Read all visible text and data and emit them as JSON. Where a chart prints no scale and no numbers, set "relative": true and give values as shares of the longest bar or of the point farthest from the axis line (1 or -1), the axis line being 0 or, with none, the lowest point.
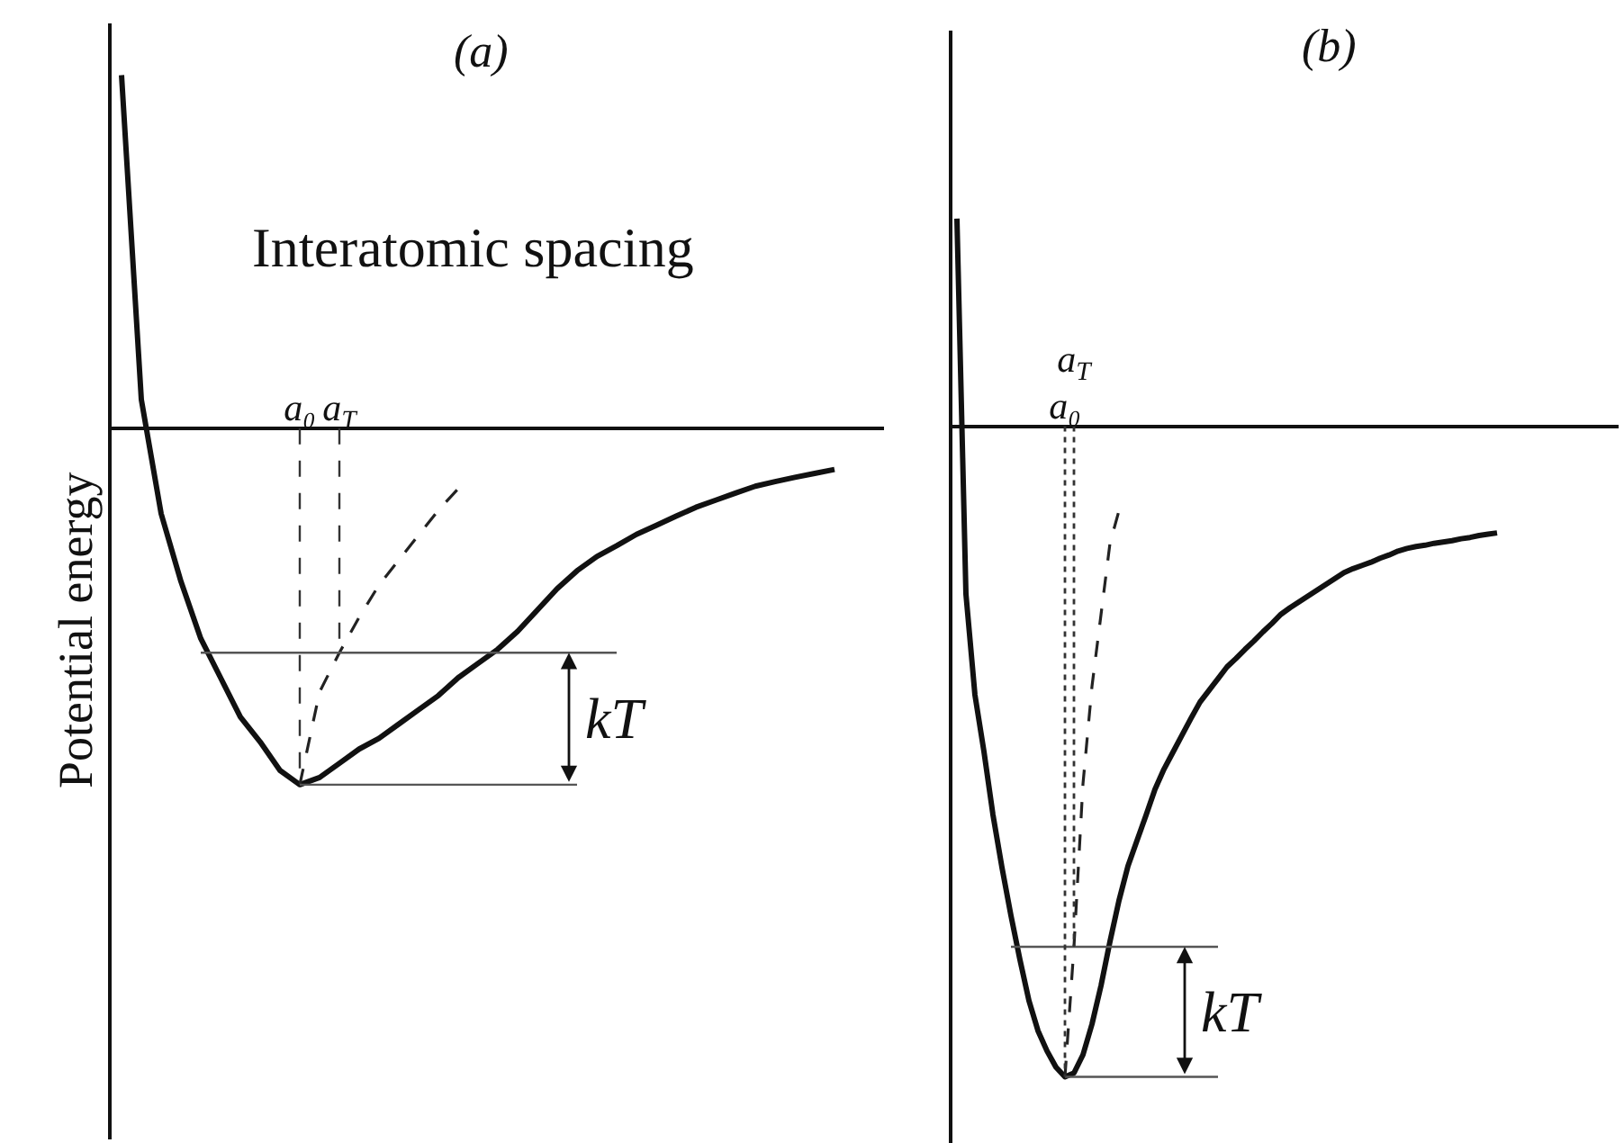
{
  "chart_data": [
    {
      "type": "line",
      "title": "(a)",
      "xlabel": "Interatomic spacing",
      "ylabel": "Potential energy",
      "relative": true,
      "categories": [
        null,
        null,
        null,
        null,
        null,
        null,
        null,
        null,
        null,
        "a₀",
        null,
        "a$_{T}$",
        null,
        null,
        null,
        null,
        null,
        null,
        null,
        null,
        null,
        null,
        null,
        null,
        null,
        null,
        null,
        null,
        null,
        null,
        null,
        null,
        null,
        null,
        null,
        null,
        null,
        null,
        null
      ],
      "series": [
        {
          "color": "#111111",
          "values": [
            0.99,
            0.08,
            -0.24,
            -0.43,
            -0.59,
            -0.7,
            -0.81,
            -0.88,
            -0.96,
            -1,
            -0.98,
            -0.94,
            -0.9,
            -0.87,
            -0.83,
            -0.79,
            -0.75,
            -0.7,
            -0.66,
            -0.62,
            -0.57,
            -0.51,
            -0.45,
            -0.4,
            -0.36,
            -0.33,
            -0.298,
            -0.273,
            -0.247,
            -0.222,
            -0.202,
            -0.182,
            -0.163,
            -0.15,
            -0.138,
            -0.127,
            -0.116,
            null,
            null
          ]
        },
        {
          "color": "#222222",
          "line_style": "dashed",
          "values": [
            null,
            null,
            null,
            null,
            null,
            null,
            null,
            null,
            null,
            -1,
            -0.74,
            -0.63,
            -0.53,
            -0.44,
            -0.37,
            -0.3,
            -0.23,
            -0.17,
            null,
            null,
            null,
            null,
            null,
            null,
            null,
            null,
            null,
            null,
            null,
            null,
            null,
            null,
            null,
            null,
            null,
            null,
            null,
            null,
            null
          ]
        },
        {
          "color": "#555555",
          "values": [
            null,
            null,
            null,
            null,
            -0.63,
            -0.63,
            -0.63,
            -0.63,
            -0.63,
            -0.63,
            -0.63,
            -0.63,
            -0.63,
            -0.63,
            -0.63,
            -0.63,
            -0.63,
            -0.63,
            -0.63,
            -0.63,
            -0.63,
            -0.63,
            -0.63,
            -0.63,
            -0.63,
            -0.63,
            null,
            null,
            null,
            null,
            null,
            null,
            null,
            null,
            null,
            null,
            null,
            null,
            null
          ]
        },
        {
          "color": "#555555",
          "values": [
            null,
            null,
            null,
            null,
            null,
            null,
            null,
            null,
            null,
            -1,
            -1,
            -1,
            -1,
            -1,
            -1,
            -1,
            -1,
            -1,
            -1,
            -1,
            -1,
            -1,
            -1,
            -1,
            null,
            null,
            null,
            null,
            null,
            null,
            null,
            null,
            null,
            null,
            null,
            null,
            null,
            null,
            null
          ]
        },
        {
          "color": "#333333",
          "line_style": "dashed",
          "x": [
            "a₀",
            "a₀"
          ],
          "values": [
            0,
            -1
          ]
        },
        {
          "color": "#333333",
          "line_style": "dashed",
          "x": [
            "a$_{T}$",
            "a$_{T}$"
          ],
          "values": [
            0,
            -0.63
          ]
        }
      ],
      "annotations": [
        "kT"
      ]
    },
    {
      "type": "line",
      "title": "(b)",
      "relative": true,
      "categories": [
        null,
        null,
        null,
        null,
        null,
        null,
        null,
        null,
        null,
        null,
        null,
        null,
        "a₀",
        "a$_{T}$",
        null,
        null,
        null,
        null,
        null,
        null,
        null,
        null,
        null,
        null,
        null,
        null,
        null,
        null,
        null,
        null,
        null,
        null,
        null,
        null,
        null,
        null,
        null,
        null,
        null,
        null,
        null,
        null,
        null,
        null,
        null,
        null,
        null,
        null,
        null,
        null,
        null,
        null,
        null,
        null,
        null,
        null,
        null,
        null,
        null,
        null,
        null,
        null,
        null,
        null,
        null,
        null,
        null,
        null,
        null,
        null,
        null,
        null,
        null,
        null
      ],
      "series": [
        {
          "color": "#111111",
          "values": [
            0.319,
            -0.258,
            -0.413,
            -0.5,
            -0.597,
            -0.678,
            -0.752,
            -0.82,
            -0.883,
            -0.929,
            -0.96,
            -0.985,
            -1,
            -0.994,
            -0.966,
            -0.919,
            -0.86,
            -0.792,
            -0.729,
            -0.676,
            -0.637,
            -0.598,
            -0.558,
            -0.527,
            -0.501,
            -0.475,
            -0.449,
            -0.424,
            -0.406,
            -0.388,
            -0.37,
            -0.357,
            -0.343,
            -0.33,
            -0.316,
            -0.303,
            -0.289,
            -0.279,
            -0.27,
            -0.261,
            -0.252,
            -0.243,
            -0.234,
            -0.225,
            -0.219,
            -0.214,
            -0.209,
            -0.203,
            -0.198,
            -0.192,
            -0.188,
            -0.185,
            -0.183,
            -0.18,
            -0.178,
            -0.176,
            -0.173,
            -0.171,
            -0.168,
            -0.166,
            -0.164,
            null,
            null,
            null,
            null,
            null,
            null,
            null,
            null,
            null,
            null,
            null,
            null,
            null
          ]
        },
        {
          "color": "#222222",
          "line_style": "dashed",
          "values": [
            null,
            null,
            null,
            null,
            null,
            null,
            null,
            null,
            null,
            null,
            null,
            null,
            -1,
            -0.8,
            -0.55,
            -0.4,
            -0.29,
            -0.18,
            -0.13,
            null,
            null,
            null,
            null,
            null,
            null,
            null,
            null,
            null,
            null,
            null,
            null,
            null,
            null,
            null,
            null,
            null,
            null,
            null,
            null,
            null,
            null,
            null,
            null,
            null,
            null,
            null,
            null,
            null,
            null,
            null,
            null,
            null,
            null,
            null,
            null,
            null,
            null,
            null,
            null,
            null,
            null,
            null,
            null,
            null,
            null,
            null,
            null,
            null,
            null,
            null,
            null,
            null,
            null,
            null
          ]
        },
        {
          "color": "#555555",
          "values": [
            null,
            null,
            null,
            null,
            null,
            null,
            -0.8,
            -0.8,
            -0.8,
            -0.8,
            -0.8,
            -0.8,
            -0.8,
            -0.8,
            -0.8,
            -0.8,
            -0.8,
            -0.8,
            -0.8,
            -0.8,
            -0.8,
            -0.8,
            -0.8,
            -0.8,
            -0.8,
            -0.8,
            -0.8,
            -0.8,
            -0.8,
            -0.8,
            null,
            null,
            null,
            null,
            null,
            null,
            null,
            null,
            null,
            null,
            null,
            null,
            null,
            null,
            null,
            null,
            null,
            null,
            null,
            null,
            null,
            null,
            null,
            null,
            null,
            null,
            null,
            null,
            null,
            null,
            null,
            null,
            null,
            null,
            null,
            null,
            null,
            null,
            null,
            null,
            null,
            null,
            null,
            null
          ]
        },
        {
          "color": "#555555",
          "values": [
            null,
            null,
            null,
            null,
            null,
            null,
            null,
            null,
            null,
            null,
            null,
            null,
            -1,
            -1,
            -1,
            -1,
            -1,
            -1,
            -1,
            -1,
            -1,
            -1,
            -1,
            -1,
            -1,
            -1,
            -1,
            -1,
            -1,
            -1,
            null,
            null,
            null,
            null,
            null,
            null,
            null,
            null,
            null,
            null,
            null,
            null,
            null,
            null,
            null,
            null,
            null,
            null,
            null,
            null,
            null,
            null,
            null,
            null,
            null,
            null,
            null,
            null,
            null,
            null,
            null,
            null,
            null,
            null,
            null,
            null,
            null,
            null,
            null,
            null,
            null,
            null,
            null,
            null
          ]
        },
        {
          "color": "#333333",
          "line_style": "dotted",
          "x": [
            "a₀",
            "a₀"
          ],
          "values": [
            0,
            -1
          ]
        },
        {
          "color": "#333333",
          "line_style": "dotted",
          "x": [
            "a$_{T}$",
            "a$_{T}$"
          ],
          "values": [
            0,
            -0.8
          ]
        }
      ],
      "annotations": [
        "kT"
      ]
    }
  ]
}
